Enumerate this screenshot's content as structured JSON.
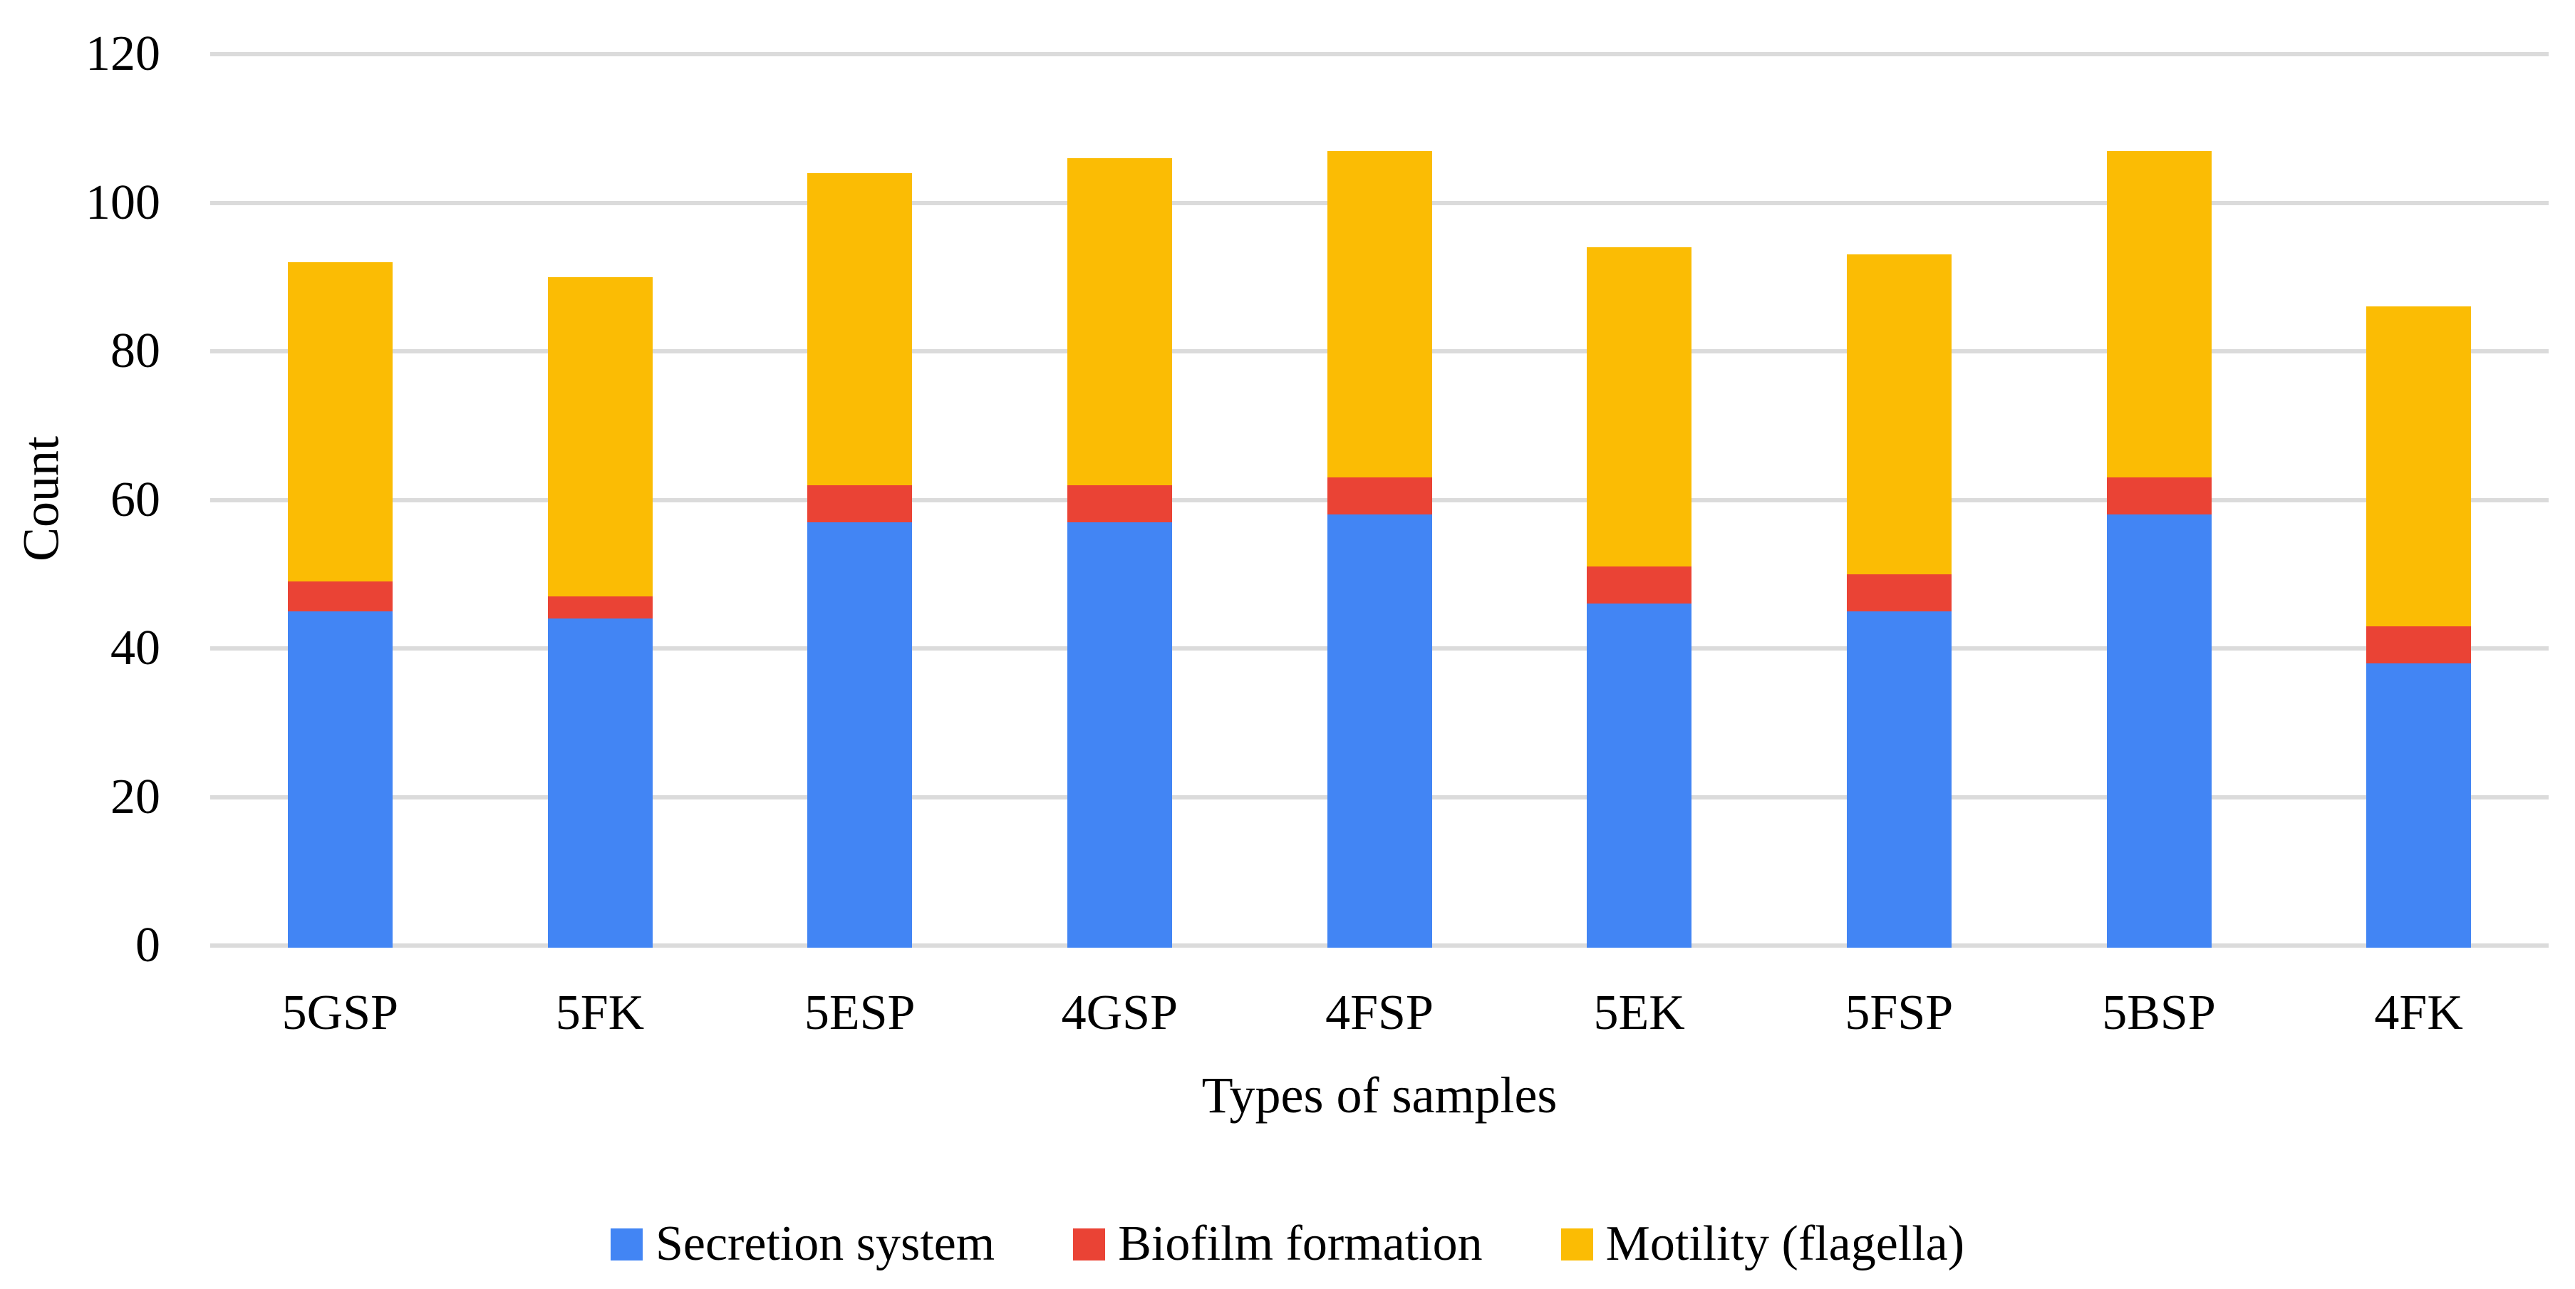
{
  "chart_data": {
    "type": "bar",
    "stacked": true,
    "title": "",
    "categories": [
      "5GSP",
      "5FK",
      "5ESP",
      "4GSP",
      "4FSP",
      "5EK",
      "5FSP",
      "5BSP",
      "4FK"
    ],
    "series": [
      {
        "name": "Secretion system",
        "color": "#4285F4",
        "values": [
          45,
          44,
          57,
          57,
          58,
          46,
          45,
          58,
          38
        ]
      },
      {
        "name": "Biofilm formation",
        "color": "#EA4335",
        "values": [
          4,
          3,
          5,
          5,
          5,
          5,
          5,
          5,
          5
        ]
      },
      {
        "name": "Motility (flagella)",
        "color": "#FBBC04",
        "values": [
          43,
          43,
          42,
          44,
          44,
          43,
          43,
          44,
          43
        ]
      }
    ],
    "stack_totals": [
      92,
      90,
      104,
      106,
      107,
      94,
      93,
      107,
      86
    ],
    "xlabel": "Types of samples",
    "ylabel": "Count",
    "ylim": [
      0,
      120
    ],
    "yticks": [
      0,
      20,
      40,
      60,
      80,
      100,
      120
    ],
    "grid": "horizontal",
    "gridline_color": "#DBDBDB",
    "legend_position": "bottom",
    "text_color": "#000000"
  }
}
